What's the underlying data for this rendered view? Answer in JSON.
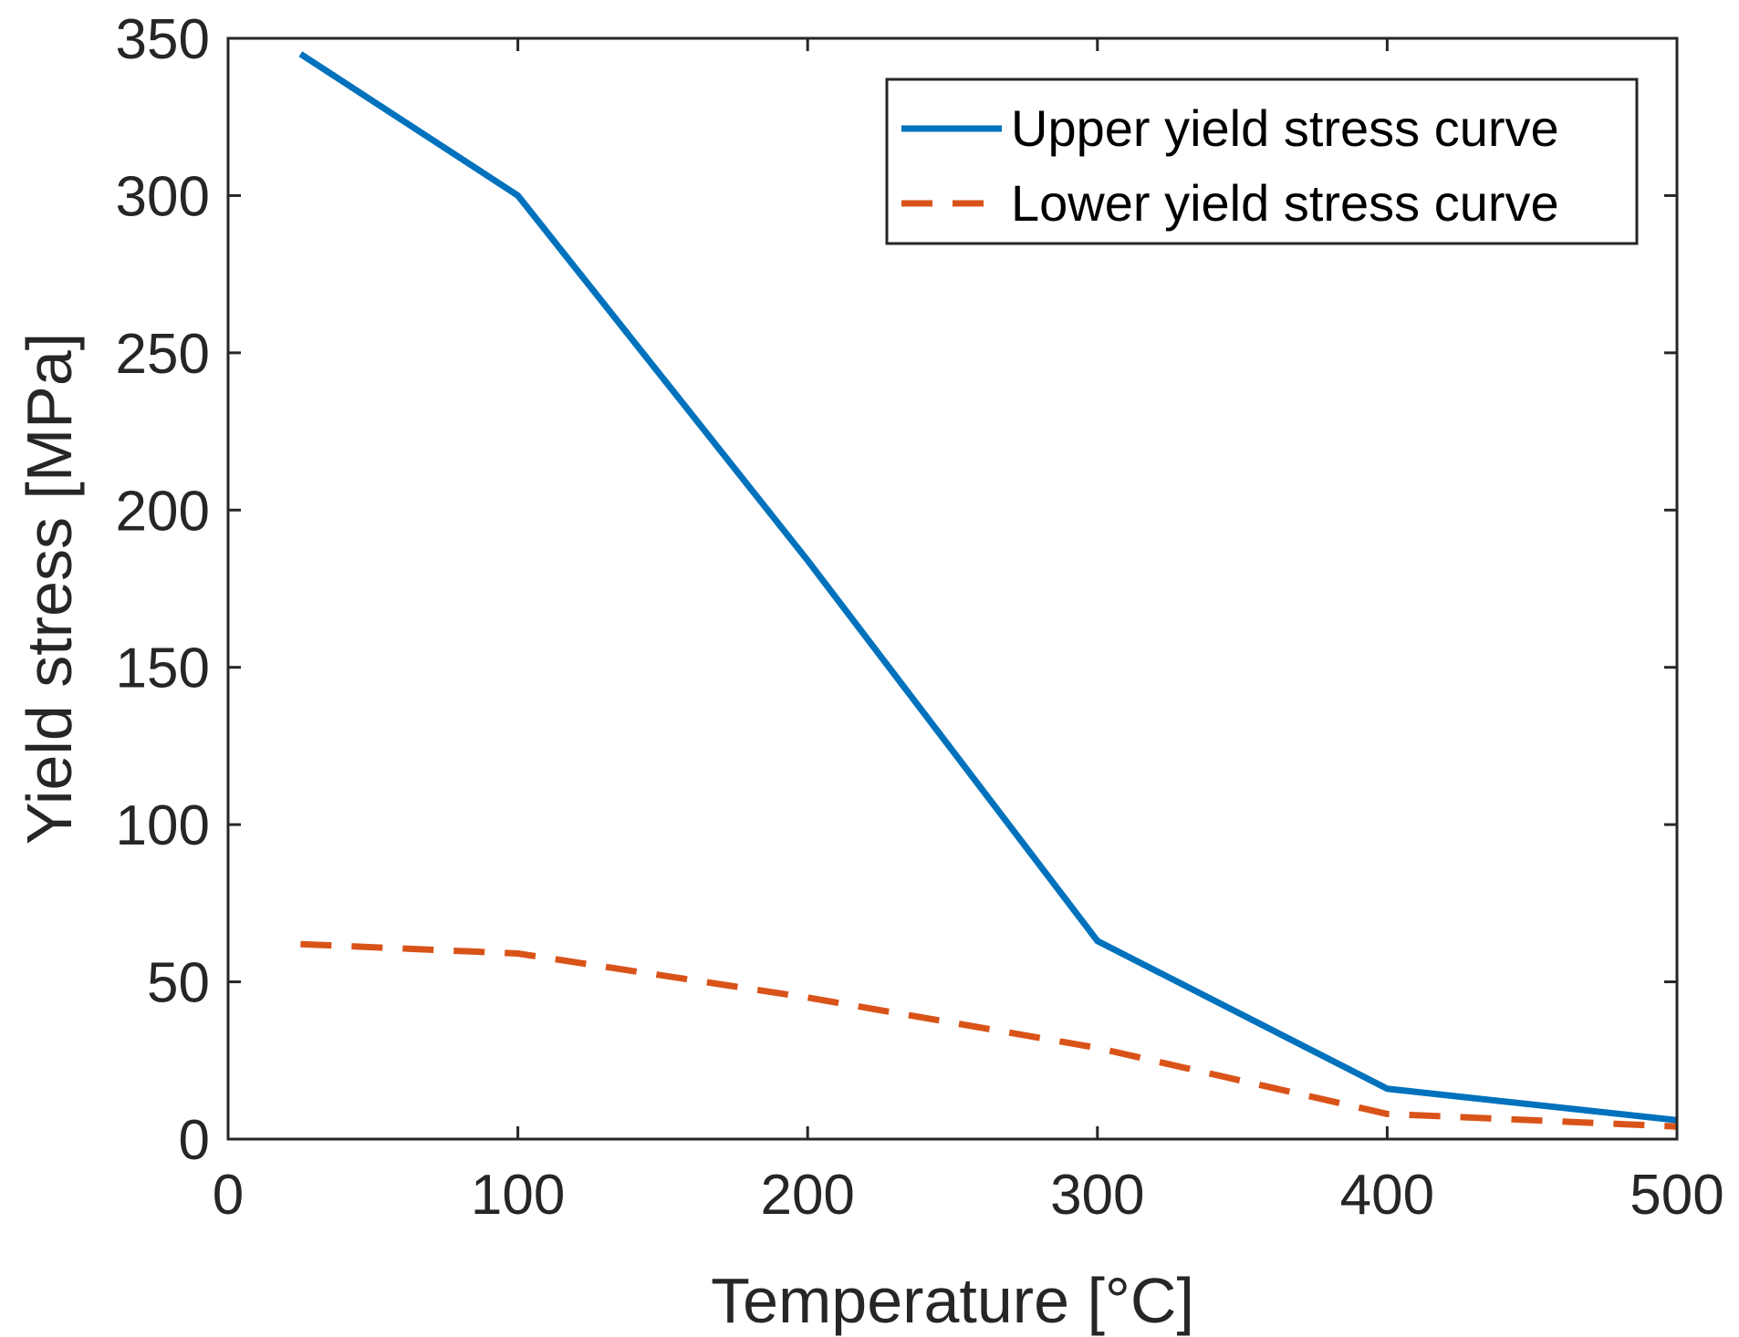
{
  "chart_data": {
    "type": "line",
    "title": "",
    "xlabel": "Temperature [°C]",
    "ylabel": "Yield stress [MPa]",
    "xlim": [
      0,
      500
    ],
    "ylim": [
      0,
      350
    ],
    "xticks": [
      0,
      100,
      200,
      300,
      400,
      500
    ],
    "yticks": [
      0,
      50,
      100,
      150,
      200,
      250,
      300,
      350
    ],
    "grid": false,
    "legend_position": "top-right",
    "series": [
      {
        "name": "Upper yield stress curve",
        "style": "solid",
        "color": "#0072BD",
        "x": [
          25,
          100,
          200,
          300,
          400,
          500
        ],
        "y": [
          345,
          300,
          184,
          63,
          16,
          6
        ]
      },
      {
        "name": "Lower yield stress curve",
        "style": "dashed",
        "color": "#D95319",
        "x": [
          25,
          100,
          200,
          300,
          400,
          500
        ],
        "y": [
          62,
          59,
          45,
          29,
          8,
          4
        ]
      }
    ]
  }
}
